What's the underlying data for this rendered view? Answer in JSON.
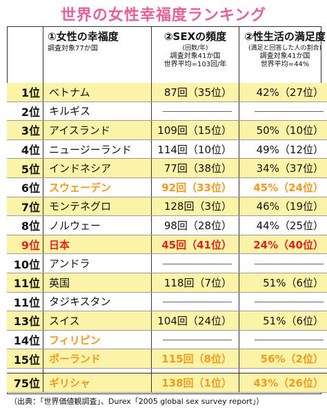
{
  "title": "世界の女性幸福度ランキング",
  "headers": {
    "happiness": {
      "label": "①女性の幸福度",
      "sub": "調査対象77か国"
    },
    "frequency": {
      "label": "②SEXの頻度",
      "note": "(回数/年)",
      "sub1": "調査対象41か国",
      "sub2": "世界平均=103回/年"
    },
    "satisfaction": {
      "label": "②性生活の満足度",
      "note": "(満足と回答した人の割合)",
      "sub1": "調査対象41か国",
      "sub2": "世界平均=44%"
    }
  },
  "rows": [
    {
      "rank": "1位",
      "country": "ベトナム",
      "freq": "87回（35位）",
      "sat": "42%（27位）",
      "style": "yellow"
    },
    {
      "rank": "2位",
      "country": "キルギス",
      "freq": "",
      "sat": "",
      "style": "white"
    },
    {
      "rank": "3位",
      "country": "アイスランド",
      "freq": "109回（15位）",
      "sat": "50%（10位）",
      "style": "yellow"
    },
    {
      "rank": "4位",
      "country": "ニュージーランド",
      "freq": "114回（10位）",
      "sat": "49%（12位）",
      "style": "white"
    },
    {
      "rank": "5位",
      "country": "インドネシア",
      "freq": "77回（38位）",
      "sat": "34%（37位）",
      "style": "yellow"
    },
    {
      "rank": "6位",
      "country": "スウェーデン",
      "freq": "92回（33位）",
      "sat": "45%（24位）",
      "style": "white orange"
    },
    {
      "rank": "7位",
      "country": "モンテネグロ",
      "freq": "128回（3位）",
      "sat": "46%（19位）",
      "style": "yellow"
    },
    {
      "rank": "8位",
      "country": "ノルウェー",
      "freq": "98回（28位）",
      "sat": "44%（25位）",
      "style": "white"
    },
    {
      "rank": "9位",
      "country": "日本",
      "freq": "45回（41位）",
      "sat": "24%（40位）",
      "style": "yellow red"
    },
    {
      "rank": "10位",
      "country": "アンドラ",
      "freq": "",
      "sat": "",
      "style": "white"
    },
    {
      "rank": "11位",
      "country": "英国",
      "freq": "118回（7位）",
      "sat": "51%（6位）",
      "style": "yellow"
    },
    {
      "rank": "11位",
      "country": "タジキスタン",
      "freq": "",
      "sat": "",
      "style": "white"
    },
    {
      "rank": "13位",
      "country": "スイス",
      "freq": "104回（24位）",
      "sat": "51%（6位）",
      "style": "yellow"
    },
    {
      "rank": "14位",
      "country": "フィリピン",
      "freq": "",
      "sat": "",
      "style": "white orange"
    },
    {
      "rank": "15位",
      "country": "ポーランド",
      "freq": "115回（8位）",
      "sat": "56%（2位）",
      "style": "yellow orange"
    }
  ],
  "last_row": {
    "rank": "75位",
    "country": "ギリシャ",
    "freq": "138回（1位）",
    "sat": "43%（26位）",
    "style": "yellow orange"
  },
  "source": "（出典：「世界価値観調査」、Durex「2005 global sex survey report」）"
}
